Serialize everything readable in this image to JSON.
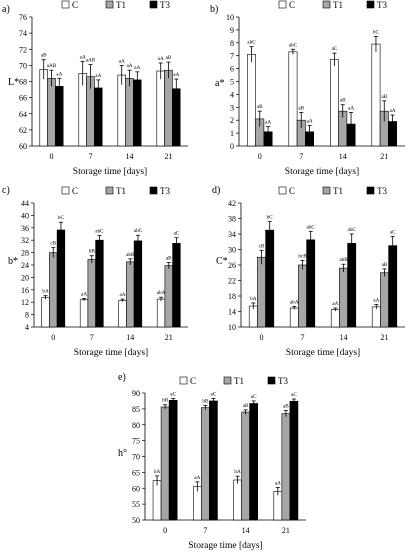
{
  "figure": {
    "colors": {
      "C": "#ffffff",
      "T1": "#a6a6a6",
      "T3": "#000000"
    }
  },
  "chart_data": [
    {
      "panel": "a)",
      "type": "bar",
      "ylabel": "L*",
      "xlabel": "Storage time [days]",
      "ylim": [
        60,
        76
      ],
      "yticks": [
        60,
        62,
        64,
        66,
        68,
        70,
        72,
        74,
        76
      ],
      "categories": [
        "0",
        "7",
        "14",
        "21"
      ],
      "legend": [
        "C",
        "T1",
        "T3"
      ],
      "series": [
        {
          "name": "C",
          "values": [
            69.5,
            69.0,
            68.8,
            69.3
          ],
          "errors": [
            1.2,
            1.5,
            1.2,
            1.0
          ],
          "labels": [
            "aB",
            "aA",
            "aA",
            "aA"
          ]
        },
        {
          "name": "T1",
          "values": [
            68.4,
            68.6,
            68.4,
            69.4
          ],
          "errors": [
            1.0,
            1.5,
            1.0,
            1.0
          ],
          "labels": [
            "aAB",
            "aAB",
            "aA",
            "aB"
          ]
        },
        {
          "name": "T3",
          "values": [
            67.4,
            67.2,
            68.2,
            67.1
          ],
          "errors": [
            1.0,
            1.0,
            1.0,
            1.2
          ],
          "labels": [
            "aA",
            "aA",
            "aA",
            "aA"
          ]
        }
      ]
    },
    {
      "panel": "b)",
      "type": "bar",
      "ylabel": "a*",
      "xlabel": "Storage time [days]",
      "ylim": [
        0,
        10
      ],
      "yticks": [
        0,
        1,
        2,
        3,
        4,
        5,
        6,
        7,
        8,
        9,
        10
      ],
      "categories": [
        "0",
        "7",
        "14",
        "21"
      ],
      "legend": [
        "C",
        "T1",
        "T3"
      ],
      "series": [
        {
          "name": "C",
          "values": [
            7.1,
            7.3,
            6.7,
            7.9
          ],
          "errors": [
            0.6,
            0.2,
            0.5,
            0.6
          ],
          "labels": [
            "abC",
            "abC",
            "aC",
            "bC"
          ]
        },
        {
          "name": "T1",
          "values": [
            2.1,
            2.0,
            2.7,
            2.7
          ],
          "errors": [
            0.6,
            0.6,
            0.5,
            0.8
          ],
          "labels": [
            "aB",
            "aB",
            "aB",
            "aB"
          ]
        },
        {
          "name": "T3",
          "values": [
            1.1,
            1.1,
            1.7,
            1.9
          ],
          "errors": [
            0.4,
            0.5,
            0.9,
            0.5
          ],
          "labels": [
            "aA",
            "aA",
            "aA",
            "aA"
          ]
        }
      ]
    },
    {
      "panel": "c)",
      "type": "bar",
      "ylabel": "b*",
      "xlabel": "Storage time [days]",
      "ylim": [
        4,
        44
      ],
      "yticks": [
        4,
        8,
        12,
        16,
        20,
        24,
        28,
        32,
        36,
        40,
        44
      ],
      "categories": [
        "0",
        "7",
        "14",
        "21"
      ],
      "legend": [
        "C",
        "T1",
        "T3"
      ],
      "series": [
        {
          "name": "C",
          "values": [
            13.5,
            12.8,
            12.6,
            13.0
          ],
          "errors": [
            0.6,
            0.4,
            0.4,
            0.6
          ],
          "labels": [
            "bA",
            "aA",
            "aA",
            "abA"
          ]
        },
        {
          "name": "T1",
          "values": [
            28.0,
            25.8,
            25.0,
            23.8
          ],
          "errors": [
            1.6,
            1.2,
            1.0,
            1.0
          ],
          "labels": [
            "cB",
            "bB",
            "abB",
            "aB"
          ]
        },
        {
          "name": "T3",
          "values": [
            35.3,
            32.0,
            31.8,
            31.0
          ],
          "errors": [
            2.5,
            1.5,
            1.8,
            1.8
          ],
          "labels": [
            "bC",
            "abC",
            "abC",
            "aC"
          ]
        }
      ]
    },
    {
      "panel": "d)",
      "type": "bar",
      "ylabel": "C*",
      "xlabel": "Storage time [days]",
      "ylim": [
        10,
        42
      ],
      "yticks": [
        10,
        14,
        18,
        22,
        26,
        30,
        34,
        38,
        42
      ],
      "categories": [
        "0",
        "7",
        "14",
        "21"
      ],
      "legend": [
        "C",
        "T1",
        "T3"
      ],
      "series": [
        {
          "name": "C",
          "values": [
            15.4,
            14.9,
            14.5,
            15.2
          ],
          "errors": [
            0.8,
            0.4,
            0.4,
            0.6
          ],
          "labels": [
            "bA",
            "abA",
            "aA",
            "aA"
          ]
        },
        {
          "name": "T1",
          "values": [
            28.0,
            26.0,
            25.2,
            24.0
          ],
          "errors": [
            1.8,
            1.2,
            1.0,
            1.0
          ],
          "labels": [
            "cB",
            "bcB",
            "abB",
            "aB"
          ]
        },
        {
          "name": "T3",
          "values": [
            35.0,
            32.5,
            31.6,
            31.0
          ],
          "errors": [
            2.2,
            2.2,
            2.4,
            2.4
          ],
          "labels": [
            "bC",
            "abC",
            "abC",
            "aC"
          ]
        }
      ]
    },
    {
      "panel": "e)",
      "type": "bar",
      "ylabel": "h°",
      "xlabel": "Storage time [days]",
      "ylim": [
        50,
        90
      ],
      "yticks": [
        50,
        55,
        60,
        65,
        70,
        75,
        80,
        85,
        90
      ],
      "categories": [
        "0",
        "7",
        "14",
        "21"
      ],
      "legend": [
        "C",
        "T1",
        "T3"
      ],
      "series": [
        {
          "name": "C",
          "values": [
            62.4,
            60.5,
            62.6,
            59.0
          ],
          "errors": [
            1.5,
            1.5,
            1.2,
            1.2
          ],
          "labels": [
            "bA",
            "aA",
            "bA",
            "aA"
          ]
        },
        {
          "name": "T1",
          "values": [
            85.6,
            85.4,
            84.0,
            83.5
          ],
          "errors": [
            0.7,
            0.7,
            0.7,
            1.0
          ],
          "labels": [
            "bB",
            "bB",
            "aB",
            "aB"
          ]
        },
        {
          "name": "T3",
          "values": [
            87.7,
            87.5,
            86.7,
            87.4
          ],
          "errors": [
            0.6,
            0.8,
            0.8,
            0.7
          ],
          "labels": [
            "aC",
            "aC",
            "aC",
            "aC"
          ]
        }
      ]
    }
  ]
}
